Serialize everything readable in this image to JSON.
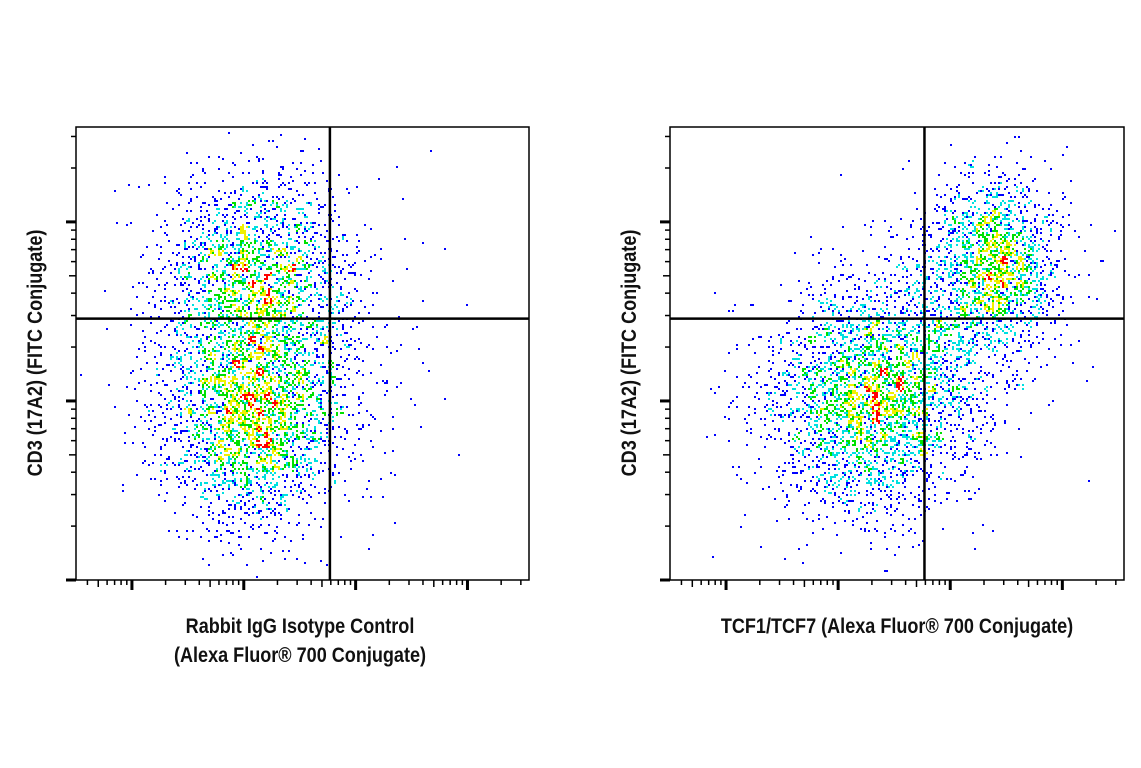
{
  "chart_data": [
    {
      "type": "scatter",
      "style": "density-colored flow cytometry dot plot with quadrant gates",
      "xlabel_lines": [
        "Rabbit IgG Isotype Control",
        "(Alexa Fluor® 700 Conjugate)"
      ],
      "ylabel": "CD3 (17A2) (FITC Conjugate)",
      "x_scale": "log (unlabeled decades)",
      "y_scale": "log (unlabeled decades)",
      "xlim": [
        -0.5,
        3.55
      ],
      "ylim": [
        0,
        2.53
      ],
      "quadrant_gate": {
        "x": 1.77,
        "y": 1.46
      },
      "populations": [
        {
          "x": 1.09,
          "y": 1.74,
          "sx": 0.42,
          "sy": 0.28,
          "n": 1800
        },
        {
          "x": 1.09,
          "y": 0.98,
          "sx": 0.42,
          "sy": 0.34,
          "n": 3200
        },
        {
          "x": 2.1,
          "y": 1.5,
          "sx": 0.35,
          "sy": 0.35,
          "n": 90
        }
      ],
      "grid": false,
      "legend": "none"
    },
    {
      "type": "scatter",
      "style": "density-colored flow cytometry dot plot with quadrant gates",
      "xlabel_lines": [
        "TCF1/TCF7 (Alexa Fluor® 700 Conjugate)"
      ],
      "ylabel": "CD3 (17A2) (FITC Conjugate)",
      "x_scale": "log (unlabeled decades)",
      "y_scale": "log (unlabeled decades)",
      "xlim": [
        -0.5,
        3.55
      ],
      "ylim": [
        0,
        2.53
      ],
      "quadrant_gate": {
        "x": 1.77,
        "y": 1.46
      },
      "populations": [
        {
          "x": 2.39,
          "y": 1.78,
          "sx": 0.3,
          "sy": 0.24,
          "n": 1700
        },
        {
          "x": 1.26,
          "y": 1.0,
          "sx": 0.45,
          "sy": 0.32,
          "n": 3000
        },
        {
          "x": 1.85,
          "y": 1.35,
          "sx": 0.4,
          "sy": 0.3,
          "n": 700
        }
      ],
      "grid": false,
      "legend": "none"
    }
  ],
  "colors": {
    "density_low": "#0000ff",
    "density_mid1": "#00e0e0",
    "density_mid2": "#00e000",
    "density_mid3": "#f0f000",
    "density_high": "#ff0000",
    "axes": "#000000"
  }
}
